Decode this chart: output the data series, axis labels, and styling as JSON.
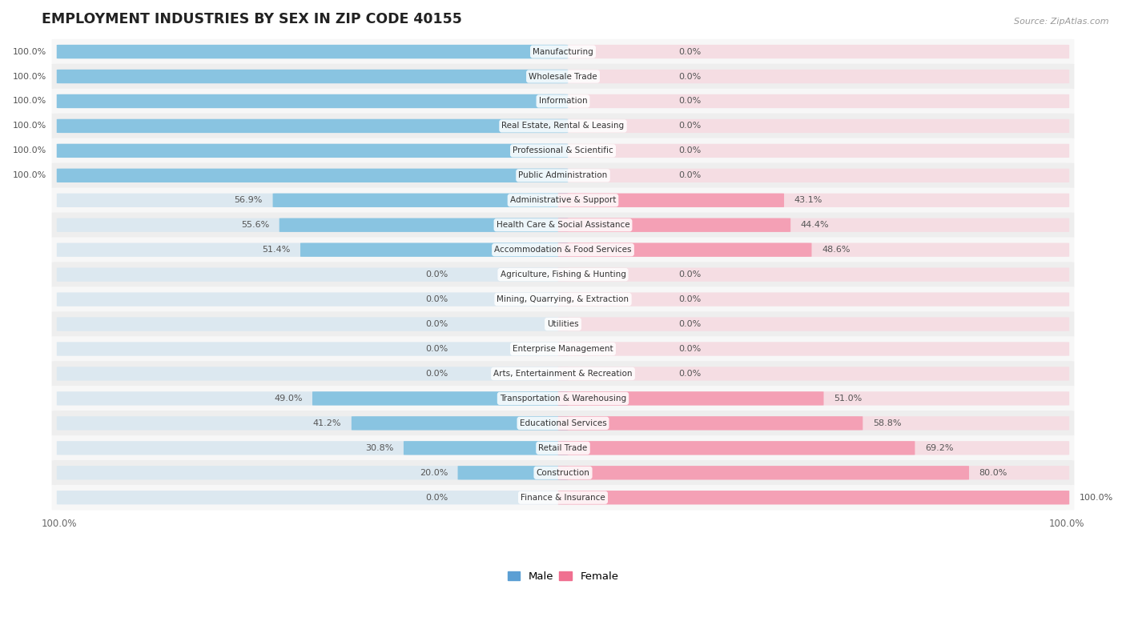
{
  "title": "EMPLOYMENT INDUSTRIES BY SEX IN ZIP CODE 40155",
  "source": "Source: ZipAtlas.com",
  "male_color": "#89c4e1",
  "female_color": "#f4a0b5",
  "categories": [
    "Manufacturing",
    "Wholesale Trade",
    "Information",
    "Real Estate, Rental & Leasing",
    "Professional & Scientific",
    "Public Administration",
    "Administrative & Support",
    "Health Care & Social Assistance",
    "Accommodation & Food Services",
    "Agriculture, Fishing & Hunting",
    "Mining, Quarrying, & Extraction",
    "Utilities",
    "Enterprise Management",
    "Arts, Entertainment & Recreation",
    "Transportation & Warehousing",
    "Educational Services",
    "Retail Trade",
    "Construction",
    "Finance & Insurance"
  ],
  "male_pct": [
    100.0,
    100.0,
    100.0,
    100.0,
    100.0,
    100.0,
    56.9,
    55.6,
    51.4,
    0.0,
    0.0,
    0.0,
    0.0,
    0.0,
    49.0,
    41.2,
    30.8,
    20.0,
    0.0
  ],
  "female_pct": [
    0.0,
    0.0,
    0.0,
    0.0,
    0.0,
    0.0,
    43.1,
    44.4,
    48.6,
    0.0,
    0.0,
    0.0,
    0.0,
    0.0,
    51.0,
    58.8,
    69.2,
    80.0,
    100.0
  ],
  "row_colors": [
    "#f7f7f7",
    "#eeeeee"
  ],
  "bar_bg_color": "#dce8f0",
  "bar_bg_female_color": "#f5dde3",
  "legend_male_color": "#5b9fd4",
  "legend_female_color": "#f07090"
}
